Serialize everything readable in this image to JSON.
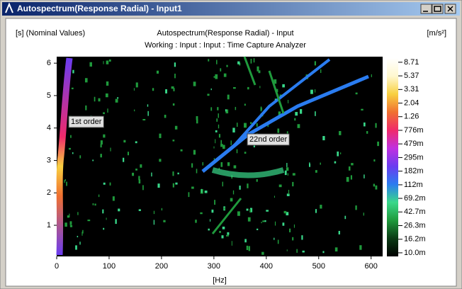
{
  "window": {
    "title": "Autospectrum(Response Radial) - Input1"
  },
  "chart_data": {
    "type": "heatmap",
    "title": "Autospectrum(Response Radial) - Input",
    "subtitle": "Working : Input : Input : Time Capture Analyzer",
    "y_label": "[s] (Nominal Values)",
    "x_label": "[Hz]",
    "colorbar_label": "[m/s²]",
    "xlim": [
      0,
      622
    ],
    "xticks": [
      0,
      100,
      200,
      300,
      400,
      500,
      600
    ],
    "ylim": [
      0.04,
      6.2
    ],
    "yticks": [
      1,
      2,
      3,
      4,
      5,
      6
    ],
    "clim": [
      0.0088,
      10.1
    ],
    "clog": true,
    "colors": [
      "#000000",
      "#0a3a14",
      "#1f9a3c",
      "#39d88a",
      "#2a7cf0",
      "#6a3cf0",
      "#c030e0",
      "#f02a6a",
      "#f07030",
      "#f8d040",
      "#fff8d0",
      "#ffffff"
    ],
    "cticks": [
      8.71,
      5.37,
      3.31,
      2.04,
      1.26,
      {
        "value": 0.776,
        "label": "776m"
      },
      {
        "value": 0.479,
        "label": "479m"
      },
      {
        "value": 0.295,
        "label": "295m"
      },
      {
        "value": 0.182,
        "label": "182m"
      },
      {
        "value": 0.112,
        "label": "112m"
      },
      {
        "value": 0.0692,
        "label": "69.2m"
      },
      {
        "value": 0.0427,
        "label": "42.7m"
      },
      {
        "value": 0.0263,
        "label": "26.3m"
      },
      {
        "value": 0.0162,
        "label": "16.2m"
      },
      {
        "value": 0.01,
        "label": "10.0m"
      }
    ],
    "annotations": [
      "1st order",
      "22nd order"
    ]
  }
}
